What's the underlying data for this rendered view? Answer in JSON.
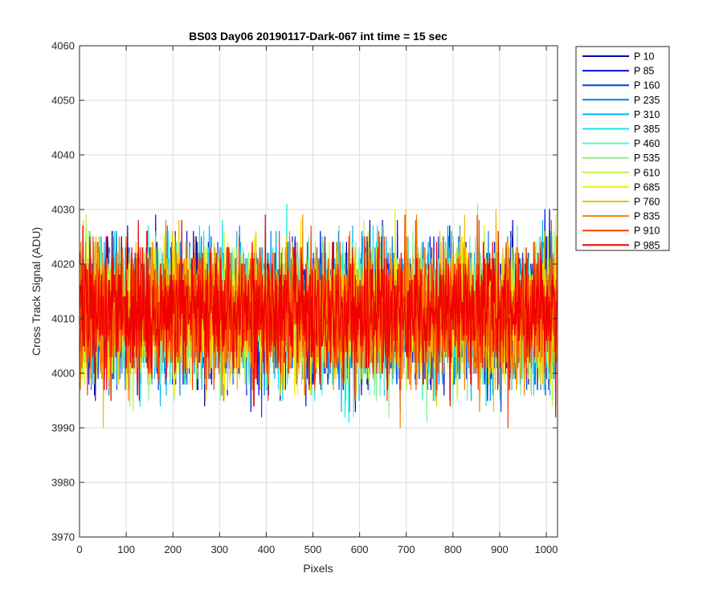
{
  "chart_data": {
    "type": "line",
    "title": "BS03 Day06 20190117-Dark-067 int time = 15 sec",
    "xlabel": "Pixels",
    "ylabel": "Cross Track Signal (ADU)",
    "xlim": [
      0,
      1024
    ],
    "ylim": [
      3970,
      4060
    ],
    "xticks": [
      0,
      100,
      200,
      300,
      400,
      500,
      600,
      700,
      800,
      900,
      1000
    ],
    "yticks": [
      3970,
      3980,
      3990,
      4000,
      4010,
      4020,
      4030,
      4040,
      4050,
      4060
    ],
    "grid": true,
    "legend_position": "outside-right",
    "points_per_series": 1024,
    "series": [
      {
        "name": "P 10",
        "color": "#0000B4",
        "mean": 4011,
        "std": 6.0,
        "seed": 11
      },
      {
        "name": "P 85",
        "color": "#0010DC",
        "mean": 4011,
        "std": 6.0,
        "seed": 23
      },
      {
        "name": "P 160",
        "color": "#0044EE",
        "mean": 4011,
        "std": 6.0,
        "seed": 37
      },
      {
        "name": "P 235",
        "color": "#0080F0",
        "mean": 4011,
        "std": 6.0,
        "seed": 41
      },
      {
        "name": "P 310",
        "color": "#00B4F0",
        "mean": 4011,
        "std": 6.0,
        "seed": 53
      },
      {
        "name": "P 385",
        "color": "#10E8E8",
        "mean": 4011,
        "std": 6.0,
        "seed": 67
      },
      {
        "name": "P 460",
        "color": "#60F0C0",
        "mean": 4011,
        "std": 6.0,
        "seed": 71
      },
      {
        "name": "P 535",
        "color": "#90F090",
        "mean": 4011,
        "std": 6.0,
        "seed": 83
      },
      {
        "name": "P 610",
        "color": "#C0F040",
        "mean": 4011,
        "std": 6.0,
        "seed": 97
      },
      {
        "name": "P 685",
        "color": "#F0F000",
        "mean": 4011,
        "std": 6.0,
        "seed": 101
      },
      {
        "name": "P 760",
        "color": "#F0C000",
        "mean": 4011,
        "std": 6.0,
        "seed": 113
      },
      {
        "name": "P 835",
        "color": "#F88000",
        "mean": 4011,
        "std": 6.0,
        "seed": 127
      },
      {
        "name": "P 910",
        "color": "#F84000",
        "mean": 4011,
        "std": 6.0,
        "seed": 131
      },
      {
        "name": "P 985",
        "color": "#F00000",
        "mean": 4011,
        "std": 6.0,
        "seed": 149
      }
    ]
  }
}
